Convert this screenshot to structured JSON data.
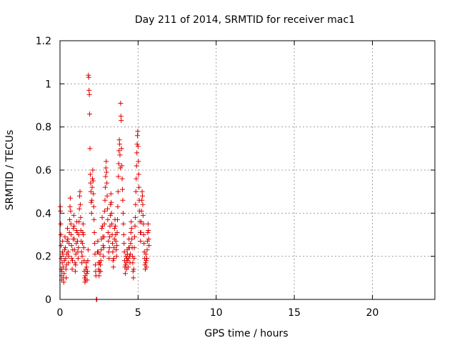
{
  "chart_data": {
    "type": "scatter",
    "title": "Day 211 of 2014, SRMTID for receiver mac1",
    "xlabel": "GPS time / hours",
    "ylabel": "SRMTID / TECUs",
    "xlim": [
      0,
      24
    ],
    "ylim": [
      0,
      1.2
    ],
    "xticks": [
      0,
      5,
      10,
      15,
      20
    ],
    "yticks": [
      0,
      0.2,
      0.4,
      0.6,
      0.8,
      1,
      1.2
    ],
    "ytick_labels": [
      "0",
      "0.2",
      "0.4",
      "0.6",
      "0.8",
      "1",
      "1.2"
    ],
    "grid": true,
    "marker": "+",
    "series": [
      {
        "name": "SRMTID",
        "color": "#e00000",
        "points": [
          [
            0.02,
            0.43
          ],
          [
            0.03,
            0.41
          ],
          [
            0.05,
            0.35
          ],
          [
            0.06,
            0.3
          ],
          [
            0.07,
            0.25
          ],
          [
            0.08,
            0.19
          ],
          [
            0.09,
            0.14
          ],
          [
            0.1,
            0.11
          ],
          [
            0.11,
            0.09
          ],
          [
            0.12,
            0.13
          ],
          [
            0.14,
            0.17
          ],
          [
            0.15,
            0.22
          ],
          [
            0.17,
            0.27
          ],
          [
            0.18,
            0.21
          ],
          [
            0.2,
            0.15
          ],
          [
            0.22,
            0.1
          ],
          [
            0.24,
            0.08
          ],
          [
            0.26,
            0.12
          ],
          [
            0.28,
            0.18
          ],
          [
            0.3,
            0.23
          ],
          [
            0.32,
            0.29
          ],
          [
            0.34,
            0.24
          ],
          [
            0.36,
            0.19
          ],
          [
            0.38,
            0.14
          ],
          [
            0.4,
            0.1
          ],
          [
            0.42,
            0.16
          ],
          [
            0.44,
            0.21
          ],
          [
            0.46,
            0.27
          ],
          [
            0.48,
            0.33
          ],
          [
            0.5,
            0.28
          ],
          [
            0.52,
            0.22
          ],
          [
            0.54,
            0.17
          ],
          [
            0.56,
            0.2
          ],
          [
            0.58,
            0.26
          ],
          [
            0.6,
            0.31
          ],
          [
            0.62,
            0.37
          ],
          [
            0.64,
            0.43
          ],
          [
            0.66,
            0.47
          ],
          [
            0.68,
            0.41
          ],
          [
            0.7,
            0.35
          ],
          [
            0.72,
            0.3
          ],
          [
            0.74,
            0.25
          ],
          [
            0.76,
            0.19
          ],
          [
            0.78,
            0.14
          ],
          [
            0.8,
            0.18
          ],
          [
            0.82,
            0.23
          ],
          [
            0.84,
            0.28
          ],
          [
            0.86,
            0.33
          ],
          [
            0.88,
            0.39
          ],
          [
            0.9,
            0.34
          ],
          [
            0.92,
            0.28
          ],
          [
            0.94,
            0.23
          ],
          [
            0.96,
            0.17
          ],
          [
            0.98,
            0.13
          ],
          [
            1.0,
            0.16
          ],
          [
            1.02,
            0.21
          ],
          [
            1.04,
            0.26
          ],
          [
            1.06,
            0.32
          ],
          [
            1.08,
            0.36
          ],
          [
            1.1,
            0.31
          ],
          [
            1.12,
            0.27
          ],
          [
            1.14,
            0.22
          ],
          [
            1.16,
            0.19
          ],
          [
            1.18,
            0.24
          ],
          [
            1.2,
            0.3
          ],
          [
            1.22,
            0.36
          ],
          [
            1.24,
            0.42
          ],
          [
            1.26,
            0.48
          ],
          [
            1.28,
            0.5
          ],
          [
            1.3,
            0.44
          ],
          [
            1.32,
            0.38
          ],
          [
            1.34,
            0.32
          ],
          [
            1.36,
            0.27
          ],
          [
            1.38,
            0.22
          ],
          [
            1.4,
            0.17
          ],
          [
            1.42,
            0.2
          ],
          [
            1.44,
            0.26
          ],
          [
            1.46,
            0.31
          ],
          [
            1.48,
            0.35
          ],
          [
            1.5,
            0.3
          ],
          [
            1.52,
            0.24
          ],
          [
            1.54,
            0.18
          ],
          [
            1.56,
            0.13
          ],
          [
            1.58,
            0.1
          ],
          [
            1.6,
            0.08
          ],
          [
            1.62,
            0.11
          ],
          [
            1.64,
            0.09
          ],
          [
            1.66,
            0.14
          ],
          [
            1.68,
            0.17
          ],
          [
            1.7,
            0.15
          ],
          [
            1.72,
            0.12
          ],
          [
            1.74,
            0.09
          ],
          [
            1.76,
            0.13
          ],
          [
            1.78,
            0.18
          ],
          [
            1.8,
            0.23
          ],
          [
            1.82,
            1.04
          ],
          [
            1.84,
            1.03
          ],
          [
            1.86,
            0.97
          ],
          [
            1.88,
            0.95
          ],
          [
            1.9,
            0.86
          ],
          [
            1.92,
            0.7
          ],
          [
            1.94,
            0.58
          ],
          [
            1.96,
            0.54
          ],
          [
            1.98,
            0.5
          ],
          [
            2.0,
            0.45
          ],
          [
            2.02,
            0.4
          ],
          [
            2.04,
            0.46
          ],
          [
            2.06,
            0.52
          ],
          [
            2.08,
            0.56
          ],
          [
            2.1,
            0.6
          ],
          [
            2.12,
            0.55
          ],
          [
            2.14,
            0.49
          ],
          [
            2.16,
            0.43
          ],
          [
            2.18,
            0.37
          ],
          [
            2.2,
            0.31
          ],
          [
            2.22,
            0.26
          ],
          [
            2.24,
            0.21
          ],
          [
            2.26,
            0.16
          ],
          [
            2.28,
            0.13
          ],
          [
            2.3,
            0.11
          ],
          [
            2.33,
            0.0
          ],
          [
            2.36,
            0.0
          ],
          [
            2.4,
            0.22
          ],
          [
            2.42,
            0.27
          ],
          [
            2.44,
            0.22
          ],
          [
            2.46,
            0.17
          ],
          [
            2.48,
            0.14
          ],
          [
            2.5,
            0.11
          ],
          [
            2.52,
            0.13
          ],
          [
            2.54,
            0.17
          ],
          [
            2.56,
            0.21
          ],
          [
            2.58,
            0.16
          ],
          [
            2.6,
            0.13
          ],
          [
            2.62,
            0.18
          ],
          [
            2.64,
            0.23
          ],
          [
            2.66,
            0.28
          ],
          [
            2.68,
            0.33
          ],
          [
            2.7,
            0.38
          ],
          [
            2.72,
            0.34
          ],
          [
            2.74,
            0.29
          ],
          [
            2.76,
            0.25
          ],
          [
            2.78,
            0.2
          ],
          [
            2.8,
            0.24
          ],
          [
            2.82,
            0.29
          ],
          [
            2.84,
            0.35
          ],
          [
            2.86,
            0.41
          ],
          [
            2.88,
            0.46
          ],
          [
            2.9,
            0.52
          ],
          [
            2.92,
            0.57
          ],
          [
            2.94,
            0.61
          ],
          [
            2.96,
            0.64
          ],
          [
            2.98,
            0.59
          ],
          [
            3.0,
            0.54
          ],
          [
            3.02,
            0.48
          ],
          [
            3.04,
            0.42
          ],
          [
            3.06,
            0.37
          ],
          [
            3.08,
            0.31
          ],
          [
            3.1,
            0.27
          ],
          [
            3.12,
            0.22
          ],
          [
            3.14,
            0.19
          ],
          [
            3.16,
            0.24
          ],
          [
            3.18,
            0.29
          ],
          [
            3.2,
            0.34
          ],
          [
            3.22,
            0.39
          ],
          [
            3.24,
            0.44
          ],
          [
            3.26,
            0.49
          ],
          [
            3.28,
            0.45
          ],
          [
            3.3,
            0.4
          ],
          [
            3.32,
            0.35
          ],
          [
            3.34,
            0.3
          ],
          [
            3.36,
            0.26
          ],
          [
            3.38,
            0.22
          ],
          [
            3.4,
            0.18
          ],
          [
            3.42,
            0.15
          ],
          [
            3.44,
            0.19
          ],
          [
            3.46,
            0.24
          ],
          [
            3.48,
            0.28
          ],
          [
            3.5,
            0.33
          ],
          [
            3.52,
            0.37
          ],
          [
            3.54,
            0.34
          ],
          [
            3.56,
            0.3
          ],
          [
            3.58,
            0.27
          ],
          [
            3.6,
            0.23
          ],
          [
            3.62,
            0.2
          ],
          [
            3.64,
            0.25
          ],
          [
            3.66,
            0.31
          ],
          [
            3.68,
            0.37
          ],
          [
            3.7,
            0.43
          ],
          [
            3.72,
            0.5
          ],
          [
            3.74,
            0.57
          ],
          [
            3.76,
            0.63
          ],
          [
            3.78,
            0.69
          ],
          [
            3.8,
            0.74
          ],
          [
            3.82,
            0.72
          ],
          [
            3.84,
            0.67
          ],
          [
            3.86,
            0.61
          ],
          [
            3.88,
            0.91
          ],
          [
            3.9,
            0.85
          ],
          [
            3.92,
            0.83
          ],
          [
            3.94,
            0.7
          ],
          [
            3.96,
            0.62
          ],
          [
            3.98,
            0.56
          ],
          [
            4.0,
            0.51
          ],
          [
            4.02,
            0.46
          ],
          [
            4.04,
            0.4
          ],
          [
            4.06,
            0.35
          ],
          [
            4.08,
            0.3
          ],
          [
            4.1,
            0.26
          ],
          [
            4.12,
            0.22
          ],
          [
            4.14,
            0.18
          ],
          [
            4.16,
            0.15
          ],
          [
            4.18,
            0.12
          ],
          [
            4.2,
            0.16
          ],
          [
            4.22,
            0.2
          ],
          [
            4.24,
            0.17
          ],
          [
            4.26,
            0.14
          ],
          [
            4.28,
            0.19
          ],
          [
            4.3,
            0.23
          ],
          [
            4.32,
            0.21
          ],
          [
            4.34,
            0.18
          ],
          [
            4.36,
            0.15
          ],
          [
            4.38,
            0.19
          ],
          [
            4.4,
            0.24
          ],
          [
            4.42,
            0.28
          ],
          [
            4.44,
            0.24
          ],
          [
            4.46,
            0.2
          ],
          [
            4.48,
            0.17
          ],
          [
            4.5,
            0.21
          ],
          [
            4.52,
            0.26
          ],
          [
            4.54,
            0.31
          ],
          [
            4.56,
            0.36
          ],
          [
            4.58,
            0.33
          ],
          [
            4.6,
            0.28
          ],
          [
            4.62,
            0.24
          ],
          [
            4.64,
            0.2
          ],
          [
            4.66,
            0.17
          ],
          [
            4.68,
            0.13
          ],
          [
            4.7,
            0.1
          ],
          [
            4.72,
            0.14
          ],
          [
            4.74,
            0.19
          ],
          [
            4.76,
            0.24
          ],
          [
            4.78,
            0.29
          ],
          [
            4.8,
            0.34
          ],
          [
            4.82,
            0.38
          ],
          [
            4.84,
            0.44
          ],
          [
            4.86,
            0.5
          ],
          [
            4.88,
            0.56
          ],
          [
            4.9,
            0.62
          ],
          [
            4.92,
            0.68
          ],
          [
            4.94,
            0.72
          ],
          [
            4.96,
            0.76
          ],
          [
            4.98,
            0.78
          ],
          [
            5.0,
            0.71
          ],
          [
            5.02,
            0.64
          ],
          [
            5.04,
            0.58
          ],
          [
            5.06,
            0.52
          ],
          [
            5.08,
            0.46
          ],
          [
            5.1,
            0.41
          ],
          [
            5.12,
            0.36
          ],
          [
            5.14,
            0.31
          ],
          [
            5.16,
            0.27
          ],
          [
            5.18,
            0.31
          ],
          [
            5.2,
            0.36
          ],
          [
            5.22,
            0.41
          ],
          [
            5.24,
            0.46
          ],
          [
            5.26,
            0.5
          ],
          [
            5.28,
            0.48
          ],
          [
            5.3,
            0.44
          ],
          [
            5.32,
            0.39
          ],
          [
            5.34,
            0.35
          ],
          [
            5.36,
            0.3
          ],
          [
            5.38,
            0.26
          ],
          [
            5.4,
            0.22
          ],
          [
            5.42,
            0.19
          ],
          [
            5.44,
            0.16
          ],
          [
            5.46,
            0.14
          ],
          [
            5.48,
            0.17
          ],
          [
            5.5,
            0.21
          ],
          [
            5.52,
            0.18
          ],
          [
            5.54,
            0.15
          ],
          [
            5.56,
            0.19
          ],
          [
            5.58,
            0.23
          ],
          [
            5.6,
            0.27
          ],
          [
            5.62,
            0.31
          ],
          [
            5.64,
            0.35
          ],
          [
            5.66,
            0.32
          ],
          [
            5.68,
            0.28
          ],
          [
            5.7,
            0.25
          ]
        ]
      }
    ]
  }
}
